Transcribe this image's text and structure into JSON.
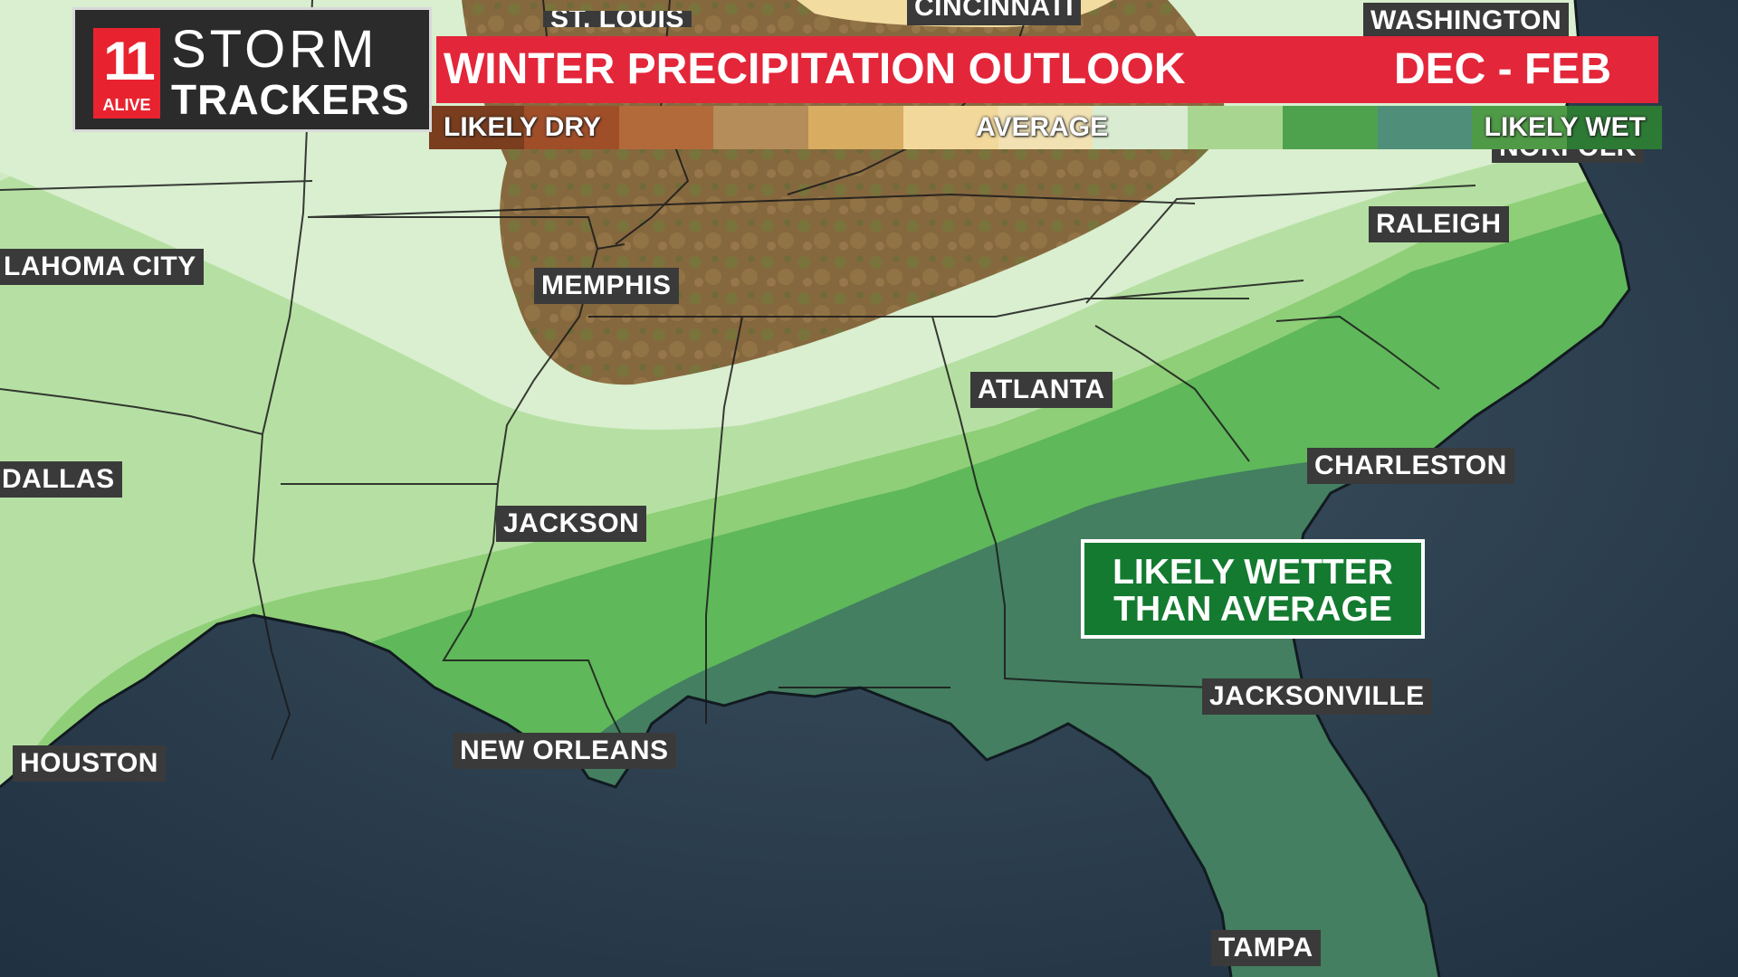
{
  "branding": {
    "logo_number": "11",
    "logo_station": "ALIVE",
    "logo_line1": "STORM",
    "logo_line2": "TRACKERS"
  },
  "header": {
    "title": "WINTER PRECIPITATION OUTLOOK",
    "period": "DEC - FEB"
  },
  "legend": {
    "dry_label": "LIKELY DRY",
    "average_label": "AVERAGE",
    "wet_label": "LIKELY WET",
    "swatches": [
      "#7a3d1e",
      "#a04e28",
      "#b36a3a",
      "#b58d5a",
      "#d8ad62",
      "#f2d89a",
      "#f2e1b3",
      "#d9ecd1",
      "#a8d690",
      "#4ea24d",
      "#4f8f7a",
      "#4f9a46",
      "#2c7a34"
    ]
  },
  "callout": {
    "line1": "LIKELY WETTER",
    "line2": "THAN AVERAGE"
  },
  "cities": {
    "st_louis": "ST. LOUIS",
    "cincinnati": "CINCINNATI",
    "washington": "WASHINGTON",
    "norfolk": "NORFOLK",
    "oklahoma_city": "LAHOMA CITY",
    "memphis": "MEMPHIS",
    "raleigh": "RALEIGH",
    "atlanta": "ATLANTA",
    "dallas": "DALLAS",
    "charleston": "CHARLESTON",
    "jackson": "JACKSON",
    "jacksonville": "JACKSONVILLE",
    "houston": "HOUSTON",
    "new_orleans": "NEW ORLEANS",
    "tampa": "TAMPA"
  },
  "colors": {
    "ocean": "#2a3c4c",
    "terrain_dry": "#8a6a40",
    "near_average": "#d9efcf",
    "slightly_wet": "#b8e0a4",
    "wet": "#8fcf78",
    "wetter": "#5fb85a",
    "wettest": "#3f7d5f",
    "title_red": "#e3263a",
    "callout_green": "#137a30"
  }
}
